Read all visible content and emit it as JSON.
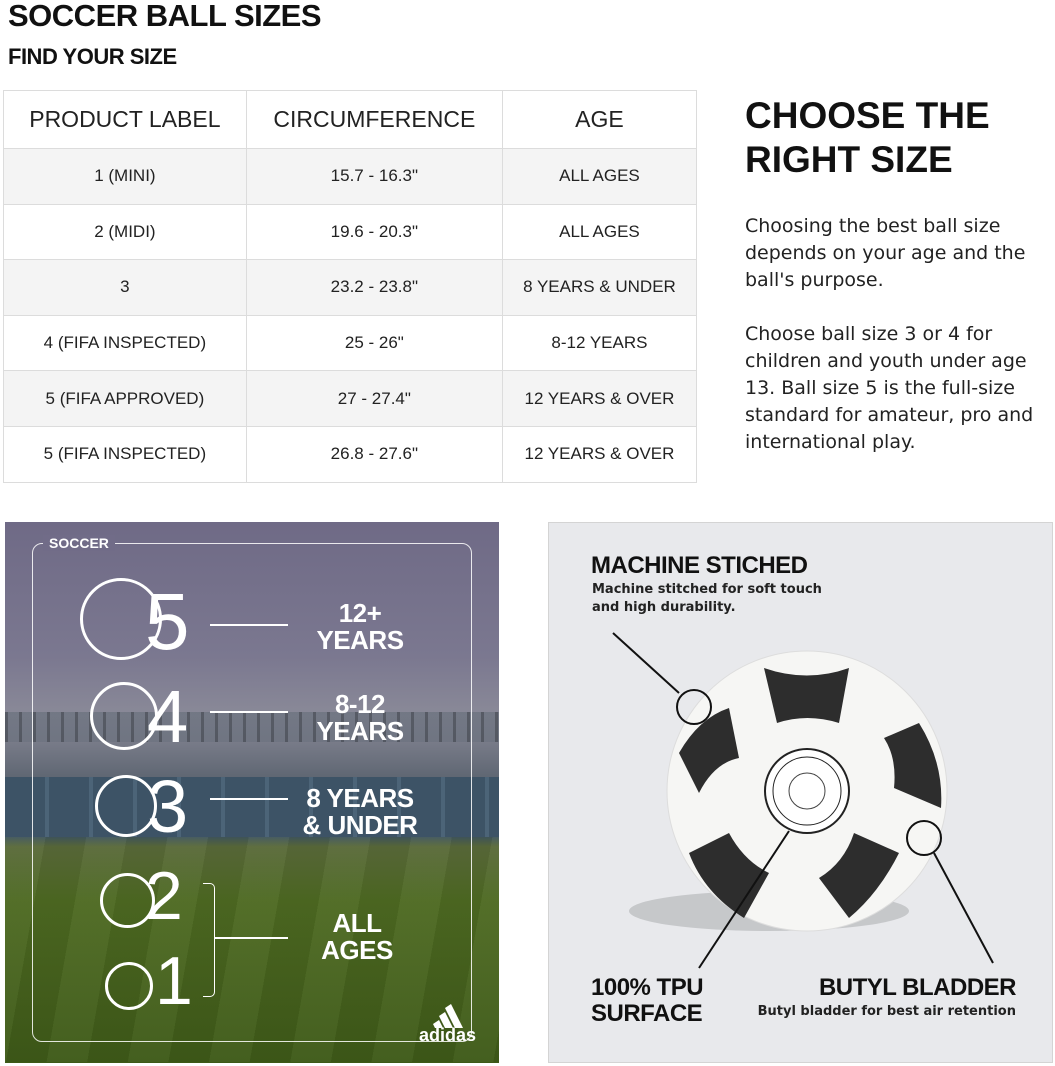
{
  "header": {
    "title": "SOCCER BALL SIZES",
    "subtitle": "FIND YOUR SIZE"
  },
  "table": {
    "columns": [
      "PRODUCT LABEL",
      "CIRCUMFERENCE",
      "AGE"
    ],
    "rows": [
      [
        "1 (MINI)",
        "15.7 - 16.3\"",
        "ALL AGES"
      ],
      [
        "2 (MIDI)",
        "19.6 - 20.3\"",
        "ALL AGES"
      ],
      [
        "3",
        "23.2 - 23.8\"",
        "8 YEARS & UNDER"
      ],
      [
        "4 (FIFA INSPECTED)",
        "25 - 26\"",
        "8-12 YEARS"
      ],
      [
        "5 (FIFA APPROVED)",
        "27 - 27.4\"",
        "12 YEARS & OVER"
      ],
      [
        "5 (FIFA INSPECTED)",
        "26.8 - 27.6\"",
        "12 YEARS & OVER"
      ]
    ]
  },
  "guide": {
    "title": "CHOOSE THE RIGHT SIZE",
    "paragraph1": "Choosing the best ball size depends on your age and the ball's purpose.",
    "paragraph2": "Choose ball size 3 or 4 for children and youth under age 13. Ball size 5 is the full-size standard for amateur, pro and international play."
  },
  "infographic": {
    "label": "SOCCER",
    "sizes": [
      {
        "number": "5",
        "age_line1": "12+",
        "age_line2": "YEARS"
      },
      {
        "number": "4",
        "age_line1": "8-12",
        "age_line2": "YEARS"
      },
      {
        "number": "3",
        "age_line1": "8 YEARS",
        "age_line2": "& UNDER"
      },
      {
        "number": "2"
      },
      {
        "number": "1"
      }
    ],
    "shared_age_line1": "ALL",
    "shared_age_line2": "AGES",
    "brand": "adidas"
  },
  "features": {
    "stitch_title": "MACHINE STICHED",
    "stitch_desc": "Machine stitched for soft touch and high durability.",
    "surface_title_line1": "100% TPU",
    "surface_title_line2": "SURFACE",
    "bladder_title": "BUTYL BLADDER",
    "bladder_desc": "Butyl bladder for best air retention"
  }
}
